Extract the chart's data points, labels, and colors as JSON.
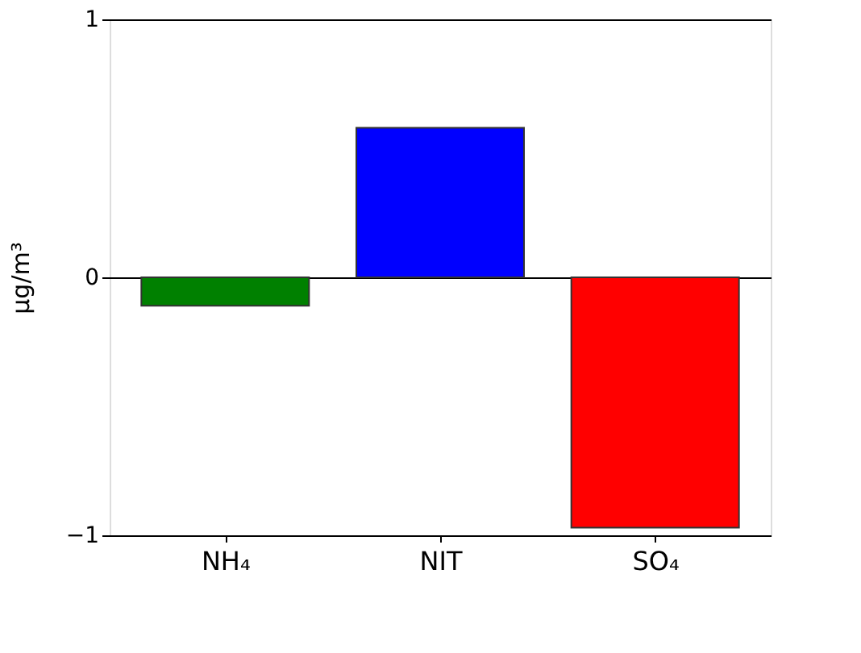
{
  "chart_data": {
    "type": "bar",
    "ylabel": "μg/m³",
    "categories": [
      "NH₄",
      "NIT",
      "SO₄"
    ],
    "values": [
      -0.11,
      0.58,
      -0.97
    ],
    "colors": [
      "#008000",
      "#0000ff",
      "#ff0000"
    ],
    "ylim": [
      -1,
      1
    ],
    "yticks": [
      {
        "value": -1,
        "label": "−1"
      },
      0,
      1
    ],
    "grid": "y"
  }
}
